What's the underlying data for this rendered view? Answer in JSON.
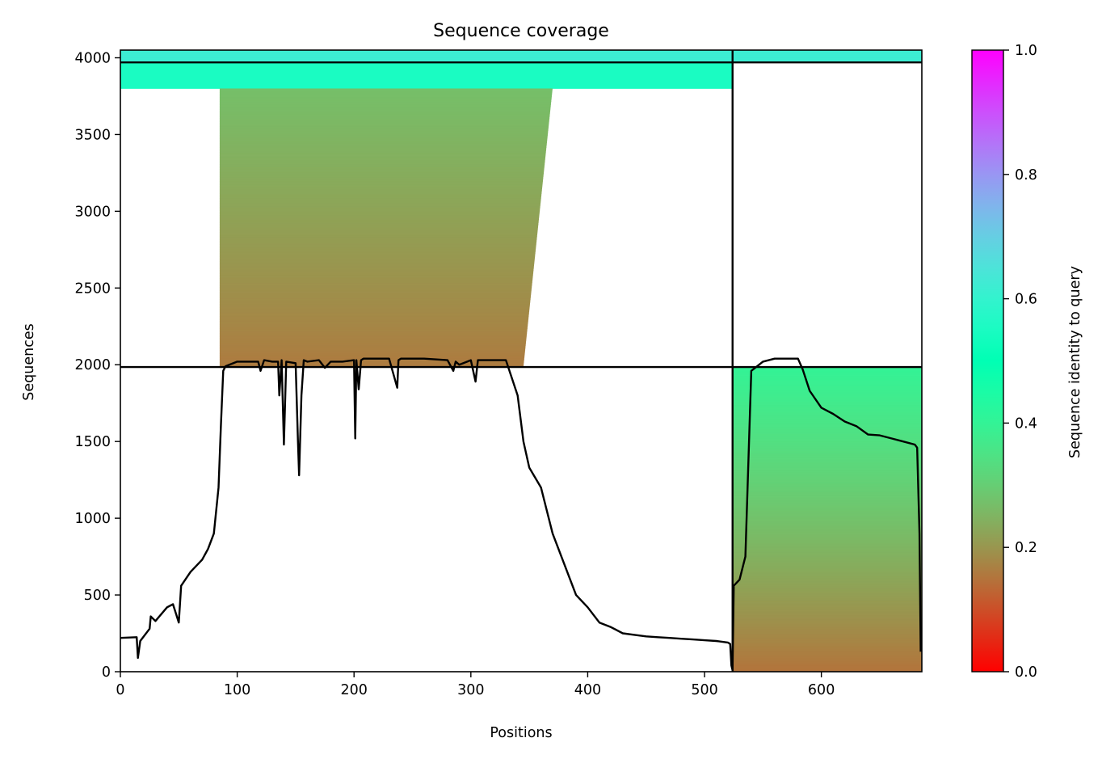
{
  "chart_data": {
    "type": "heatmap",
    "title": "Sequence coverage",
    "xlabel": "Positions",
    "ylabel": "Sequences",
    "xlim": [
      0,
      686
    ],
    "ylim": [
      0,
      4050
    ],
    "x_ticks": [
      0,
      100,
      200,
      300,
      400,
      500,
      600
    ],
    "y_ticks": [
      0,
      500,
      1000,
      1500,
      2000,
      2500,
      3000,
      3500,
      4000
    ],
    "chain_boundary_x": 524,
    "pair_boundaries_y": [
      1985,
      3970
    ],
    "colormap": "rainbow_r",
    "colorbar": {
      "label": "Sequence identity to query",
      "range": [
        0,
        1
      ],
      "ticks": [
        "0.0",
        "0.2",
        "0.4",
        "0.6",
        "0.8",
        "1.0"
      ]
    },
    "coverage_blocks": [
      {
        "y0": 3970,
        "y1": 4050,
        "x0": 0,
        "x1": 686,
        "identity": 0.62
      },
      {
        "y0": 3800,
        "y1": 3970,
        "x0": 0,
        "x1": 524,
        "identity": 0.55
      },
      {
        "y0": 1985,
        "y1": 3800,
        "x0": 85,
        "x1": 345,
        "x_end_top": 370,
        "x_end_bottom": 345,
        "identity_top": 0.27,
        "identity_bottom": 0.16
      },
      {
        "y0": 0,
        "y1": 1985,
        "x0": 524,
        "x1": 686,
        "identity_top": 0.4,
        "identity_bottom": 0.15
      }
    ],
    "coverage_line": {
      "x": [
        0,
        14,
        15,
        17,
        25,
        26,
        30,
        40,
        45,
        50,
        52,
        60,
        70,
        75,
        80,
        84,
        86,
        88,
        90,
        100,
        118,
        120,
        123,
        130,
        135,
        136,
        138,
        140,
        142,
        150,
        152,
        153,
        155,
        157,
        160,
        170,
        175,
        180,
        190,
        200,
        201,
        202,
        204,
        206,
        208,
        210,
        230,
        237,
        238,
        240,
        250,
        260,
        280,
        285,
        287,
        290,
        300,
        304,
        306,
        310,
        330,
        340,
        345,
        350,
        360,
        370,
        380,
        390,
        400,
        410,
        420,
        430,
        440,
        450,
        460,
        470,
        480,
        490,
        500,
        510,
        520,
        522,
        523,
        524,
        525,
        530,
        535,
        540,
        550,
        560,
        570,
        580,
        584,
        590,
        600,
        610,
        620,
        630,
        640,
        650,
        660,
        670,
        680,
        682,
        684,
        685
      ],
      "y": [
        220,
        225,
        90,
        200,
        280,
        360,
        330,
        420,
        440,
        320,
        560,
        650,
        730,
        800,
        900,
        1200,
        1600,
        1960,
        1990,
        2020,
        2020,
        1960,
        2030,
        2020,
        2020,
        1800,
        2030,
        1480,
        2020,
        2010,
        1500,
        1280,
        1800,
        2030,
        2020,
        2030,
        1980,
        2020,
        2020,
        2030,
        1520,
        2030,
        1840,
        2030,
        2040,
        2040,
        2040,
        1850,
        2030,
        2040,
        2040,
        2040,
        2030,
        1960,
        2020,
        2000,
        2030,
        1890,
        2030,
        2030,
        2030,
        1800,
        1500,
        1330,
        1200,
        900,
        700,
        500,
        420,
        320,
        290,
        250,
        240,
        230,
        225,
        220,
        215,
        210,
        205,
        200,
        190,
        180,
        40,
        10,
        560,
        600,
        750,
        1960,
        2020,
        2040,
        2040,
        2040,
        1970,
        1830,
        1720,
        1680,
        1630,
        1600,
        1545,
        1540,
        1520,
        1500,
        1480,
        1460,
        900,
        130
      ]
    }
  }
}
